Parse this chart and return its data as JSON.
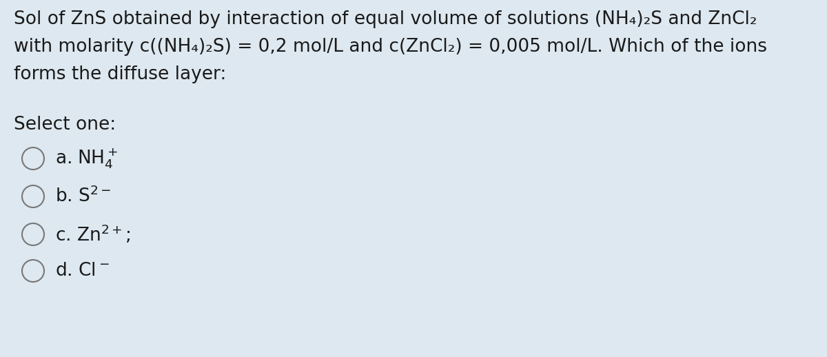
{
  "background_color": "#dde8f0",
  "text_color": "#1a1a1a",
  "title_lines": [
    "Sol of ZnS obtained by interaction of equal volume of solutions (NH₄)₂S and ZnCl₂",
    "with molarity c((NH₄)₂S) = 0,2 mol/L and c(ZnCl₂) = 0,005 mol/L. Which of the ions",
    "forms the diffuse layer:"
  ],
  "select_label": "Select one:",
  "option_labels": [
    "a. NH$_4^+$",
    "b. S$^{2-}$",
    "c. Zn$^{2+}$;",
    "d. Cl$^-$"
  ],
  "font_size_title": 19,
  "font_size_select": 19,
  "font_size_option": 19,
  "circle_color": "#777777",
  "circle_linewidth": 1.5
}
